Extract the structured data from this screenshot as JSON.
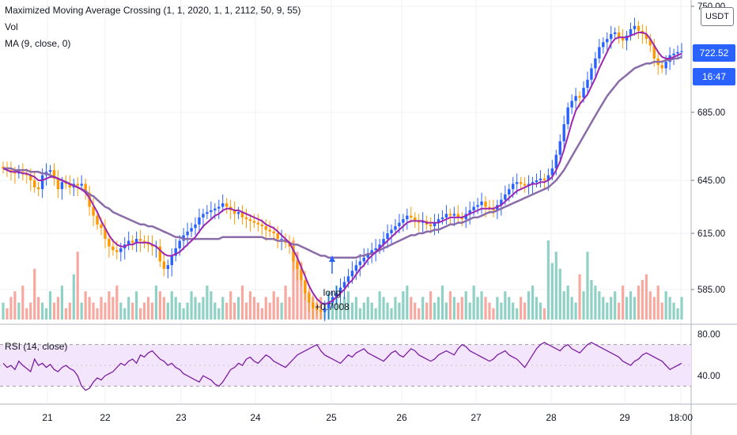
{
  "legend": {
    "strategy": "Maximized Moving Average Crossing  (1, 1, 2020, 1, 1, 2112, 50, 9, 55)",
    "vol": "Vol",
    "ma": "MA (9, close, 0)",
    "rsi": "RSI (14, close)"
  },
  "currency_button": "USDT",
  "price_badge": "722.52",
  "time_badge": "16:47",
  "annotation": {
    "label": "long",
    "value": "+0.7008"
  },
  "colors": {
    "up": "#2962ff",
    "down": "#ff9800",
    "ma_fast": "#9c27b0",
    "ma_slow": "#8a6ca8",
    "vol_up": "#8fd1c4",
    "vol_down": "#f7a9a0",
    "rsi_line": "#7b1fa2",
    "rsi_band": "#f3e5fb",
    "badge_price": "#2962ff",
    "badge_time": "#2962ff"
  },
  "chart_data": {
    "type": "candlestick",
    "x_ticks": [
      "21",
      "22",
      "23",
      "24",
      "25",
      "26",
      "27",
      "28",
      "29",
      "18:00"
    ],
    "y_ticks": [
      "750.00",
      "685.00",
      "645.00",
      "615.00",
      "585.00"
    ],
    "ylim": [
      570,
      752
    ],
    "rsi_ticks": [
      "80.00",
      "40.00"
    ],
    "rsi_ylim": [
      15,
      88
    ],
    "rsi_band": [
      30,
      70
    ],
    "last_price": 722.52,
    "annotation_x_day": 25.0,
    "close": [
      652,
      651,
      650,
      649,
      650,
      649,
      648,
      645,
      641,
      640,
      648,
      650,
      651,
      646,
      640,
      644,
      643,
      641,
      643,
      642,
      643,
      638,
      630,
      625,
      620,
      618,
      612,
      608,
      606,
      605,
      607,
      609,
      611,
      610,
      612,
      611,
      610,
      609,
      608,
      608,
      600,
      596,
      598,
      603,
      607,
      611,
      614,
      616,
      618,
      620,
      624,
      626,
      627,
      628,
      629,
      630,
      632,
      630,
      628,
      626,
      627,
      624,
      623,
      622,
      621,
      620,
      619,
      617,
      616,
      615,
      612,
      612,
      610,
      608,
      600,
      596,
      590,
      583,
      578,
      575,
      574,
      573,
      575,
      578,
      581,
      583,
      586,
      589,
      592,
      595,
      598,
      600,
      602,
      604,
      606,
      607,
      609,
      612,
      615,
      617,
      619,
      621,
      623,
      625,
      624,
      622,
      621,
      622,
      620,
      619,
      621,
      623,
      624,
      626,
      625,
      626,
      624,
      623,
      626,
      628,
      630,
      631,
      633,
      630,
      629,
      628,
      631,
      634,
      637,
      640,
      643,
      644,
      643,
      642,
      643,
      644,
      645,
      646,
      645,
      648,
      652,
      660,
      668,
      678,
      688,
      692,
      695,
      694,
      700,
      705,
      712,
      718,
      725,
      728,
      730,
      733,
      734,
      731,
      729,
      732,
      736,
      738,
      735,
      733,
      730,
      726,
      718,
      714,
      712,
      716,
      720,
      721,
      722,
      722.52
    ],
    "ma_fast": [
      652,
      651,
      650,
      650,
      650,
      649,
      649,
      648,
      647,
      645,
      645,
      646,
      647,
      647,
      646,
      645,
      644,
      643,
      642,
      641,
      640,
      638,
      635,
      631,
      627,
      622,
      618,
      614,
      611,
      609,
      608,
      608,
      609,
      609,
      610,
      610,
      610,
      610,
      609,
      608,
      606,
      604,
      603,
      603,
      604,
      605,
      607,
      609,
      611,
      613,
      616,
      619,
      621,
      623,
      625,
      626,
      628,
      629,
      629,
      628,
      628,
      627,
      626,
      625,
      624,
      623,
      622,
      620,
      619,
      618,
      616,
      614,
      612,
      610,
      606,
      602,
      597,
      592,
      587,
      583,
      580,
      578,
      577,
      578,
      579,
      581,
      583,
      585,
      588,
      590,
      593,
      596,
      598,
      601,
      603,
      605,
      607,
      609,
      611,
      613,
      615,
      617,
      619,
      621,
      622,
      622,
      622,
      622,
      621,
      621,
      621,
      621,
      622,
      623,
      624,
      624,
      624,
      624,
      625,
      626,
      627,
      628,
      629,
      629,
      629,
      629,
      630,
      631,
      633,
      635,
      637,
      639,
      640,
      641,
      642,
      643,
      643,
      644,
      644,
      645,
      647,
      651,
      656,
      663,
      671,
      679,
      686,
      690,
      693,
      696,
      701,
      706,
      712,
      717,
      722,
      727,
      730,
      731,
      731,
      731,
      732,
      733,
      734,
      734,
      733,
      730,
      726,
      722,
      719,
      718,
      718,
      719,
      720,
      721
    ],
    "ma_slow": [
      652,
      652,
      652,
      651,
      651,
      651,
      651,
      650,
      650,
      650,
      649,
      649,
      648,
      647,
      646,
      645,
      644,
      643,
      642,
      641,
      640,
      639,
      637,
      636,
      634,
      632,
      630,
      629,
      627,
      626,
      625,
      624,
      623,
      622,
      621,
      620,
      620,
      619,
      619,
      618,
      617,
      616,
      615,
      614,
      613,
      613,
      612,
      612,
      612,
      612,
      612,
      612,
      612,
      612,
      612,
      612,
      613,
      613,
      613,
      613,
      613,
      613,
      613,
      613,
      613,
      613,
      613,
      612,
      612,
      612,
      611,
      611,
      611,
      610,
      609,
      609,
      608,
      607,
      606,
      605,
      604,
      603,
      603,
      602,
      602,
      602,
      602,
      602,
      602,
      602,
      602,
      603,
      603,
      604,
      604,
      605,
      606,
      607,
      608,
      609,
      610,
      611,
      612,
      613,
      614,
      614,
      615,
      615,
      616,
      616,
      617,
      617,
      618,
      619,
      620,
      620,
      621,
      621,
      622,
      623,
      624,
      624,
      625,
      626,
      627,
      627,
      628,
      629,
      630,
      631,
      632,
      633,
      634,
      635,
      636,
      637,
      638,
      639,
      640,
      641,
      643,
      645,
      648,
      651,
      655,
      659,
      663,
      667,
      671,
      675,
      679,
      683,
      687,
      691,
      695,
      698,
      701,
      704,
      706,
      708,
      710,
      712,
      713,
      714,
      715,
      715,
      716,
      716,
      716,
      717,
      717,
      718,
      718,
      719
    ],
    "volume": [
      3,
      2,
      4,
      5,
      3,
      6,
      2,
      3,
      9,
      4,
      3,
      2,
      5,
      3,
      4,
      6,
      2,
      3,
      8,
      12,
      3,
      5,
      4,
      3,
      2,
      4,
      3,
      5,
      4,
      6,
      3,
      2,
      4,
      3,
      5,
      2,
      3,
      4,
      3,
      6,
      5,
      4,
      3,
      5,
      4,
      3,
      2,
      3,
      5,
      4,
      3,
      4,
      6,
      5,
      3,
      2,
      4,
      3,
      5,
      3,
      4,
      6,
      3,
      5,
      4,
      3,
      2,
      4,
      3,
      5,
      4,
      3,
      6,
      4,
      14,
      12,
      10,
      6,
      5,
      4,
      3,
      4,
      3,
      5,
      4,
      6,
      3,
      4,
      5,
      3,
      4,
      2,
      3,
      4,
      3,
      2,
      5,
      4,
      3,
      2,
      4,
      3,
      5,
      6,
      4,
      3,
      2,
      4,
      3,
      5,
      3,
      4,
      6,
      3,
      5,
      4,
      3,
      4,
      5,
      3,
      6,
      4,
      5,
      4,
      3,
      2,
      4,
      3,
      5,
      4,
      3,
      2,
      4,
      3,
      5,
      6,
      4,
      3,
      2,
      14,
      10,
      12,
      9,
      5,
      6,
      4,
      3,
      8,
      5,
      12,
      7,
      6,
      5,
      4,
      3,
      4,
      5,
      3,
      6,
      4,
      5,
      4,
      6,
      7,
      8,
      5,
      4,
      6,
      3,
      5,
      4,
      3,
      2,
      4
    ],
    "rsi": [
      52,
      48,
      50,
      46,
      54,
      50,
      47,
      44,
      56,
      50,
      52,
      48,
      51,
      46,
      44,
      48,
      50,
      47,
      45,
      40,
      30,
      26,
      28,
      34,
      38,
      36,
      40,
      42,
      44,
      48,
      52,
      50,
      54,
      56,
      52,
      60,
      58,
      62,
      64,
      60,
      56,
      54,
      50,
      52,
      48,
      46,
      42,
      40,
      38,
      36,
      34,
      40,
      38,
      36,
      32,
      30,
      34,
      40,
      46,
      48,
      52,
      50,
      56,
      58,
      54,
      52,
      56,
      60,
      58,
      54,
      52,
      50,
      48,
      52,
      56,
      60,
      62,
      64,
      66,
      68,
      70,
      64,
      60,
      58,
      56,
      54,
      52,
      56,
      60,
      58,
      62,
      64,
      66,
      62,
      60,
      58,
      56,
      54,
      58,
      62,
      64,
      60,
      58,
      62,
      66,
      64,
      60,
      58,
      56,
      54,
      56,
      60,
      62,
      64,
      62,
      60,
      66,
      70,
      68,
      64,
      62,
      60,
      58,
      56,
      54,
      56,
      60,
      62,
      64,
      60,
      58,
      56,
      52,
      48,
      54,
      60,
      66,
      70,
      72,
      70,
      68,
      66,
      64,
      68,
      70,
      66,
      64,
      62,
      66,
      70,
      72,
      70,
      68,
      66,
      64,
      62,
      60,
      58,
      54,
      52,
      50,
      54,
      56,
      60,
      62,
      60,
      58,
      56,
      54,
      50,
      46,
      48,
      50,
      52
    ]
  }
}
